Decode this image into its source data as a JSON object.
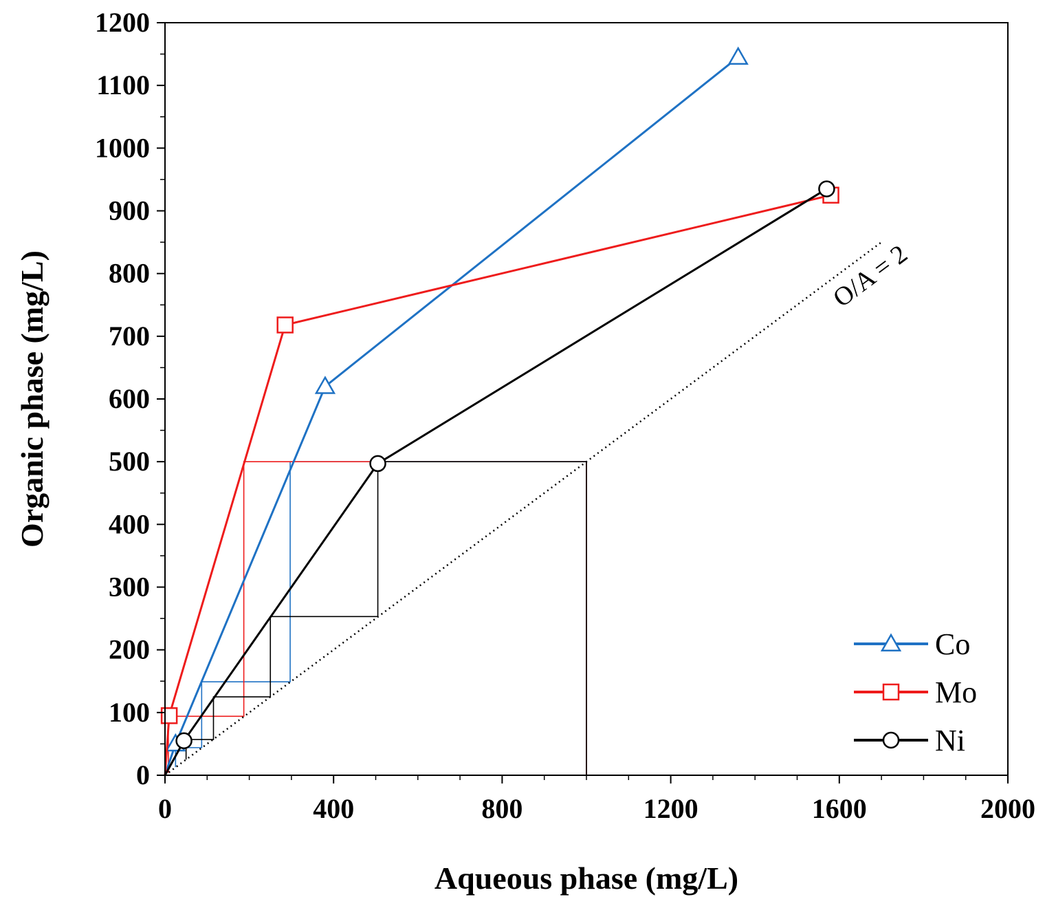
{
  "chart_data": {
    "type": "line",
    "title": "",
    "xlabel": "Aqueous phase (mg/L)",
    "ylabel": "Organic phase (mg/L)",
    "xlim": [
      0,
      2000
    ],
    "ylim": [
      0,
      1200
    ],
    "xticks": [
      0,
      400,
      800,
      1200,
      1600,
      2000
    ],
    "yticks": [
      0,
      100,
      200,
      300,
      400,
      500,
      600,
      700,
      800,
      900,
      1000,
      1100,
      1200
    ],
    "grid": false,
    "legend_position": "bottom-right",
    "colors": {
      "Co": "#1f72c4",
      "Mo": "#ee1c1c",
      "Ni": "#000000"
    },
    "series": [
      {
        "name": "Co",
        "marker": "triangle",
        "x": [
          0,
          25,
          380,
          1360
        ],
        "y": [
          0,
          50,
          620,
          1145
        ]
      },
      {
        "name": "Mo",
        "marker": "square",
        "x": [
          0,
          10,
          285,
          1580
        ],
        "y": [
          0,
          95,
          718,
          925
        ]
      },
      {
        "name": "Ni",
        "marker": "circle",
        "x": [
          0,
          45,
          505,
          1570
        ],
        "y": [
          0,
          55,
          497,
          935
        ]
      }
    ],
    "operating_line": {
      "label": "O/A = 2",
      "x": [
        0,
        1700
      ],
      "y": [
        0,
        850
      ]
    },
    "mccabe_thiele_steps": [
      {
        "name": "Co",
        "points": [
          [
            1000,
            0
          ],
          [
            1000,
            500
          ],
          [
            297,
            500
          ],
          [
            297,
            149
          ],
          [
            87,
            149
          ],
          [
            87,
            44
          ],
          [
            25,
            44
          ],
          [
            25,
            13
          ]
        ]
      },
      {
        "name": "Mo",
        "points": [
          [
            1000,
            0
          ],
          [
            1000,
            500
          ],
          [
            187,
            500
          ],
          [
            187,
            94
          ],
          [
            8,
            94
          ],
          [
            8,
            4
          ]
        ]
      },
      {
        "name": "Ni",
        "points": [
          [
            1000,
            0
          ],
          [
            1000,
            500
          ],
          [
            505,
            500
          ],
          [
            505,
            253
          ],
          [
            250,
            253
          ],
          [
            250,
            125
          ],
          [
            115,
            125
          ],
          [
            115,
            57
          ],
          [
            50,
            57
          ],
          [
            50,
            25
          ]
        ]
      }
    ]
  }
}
